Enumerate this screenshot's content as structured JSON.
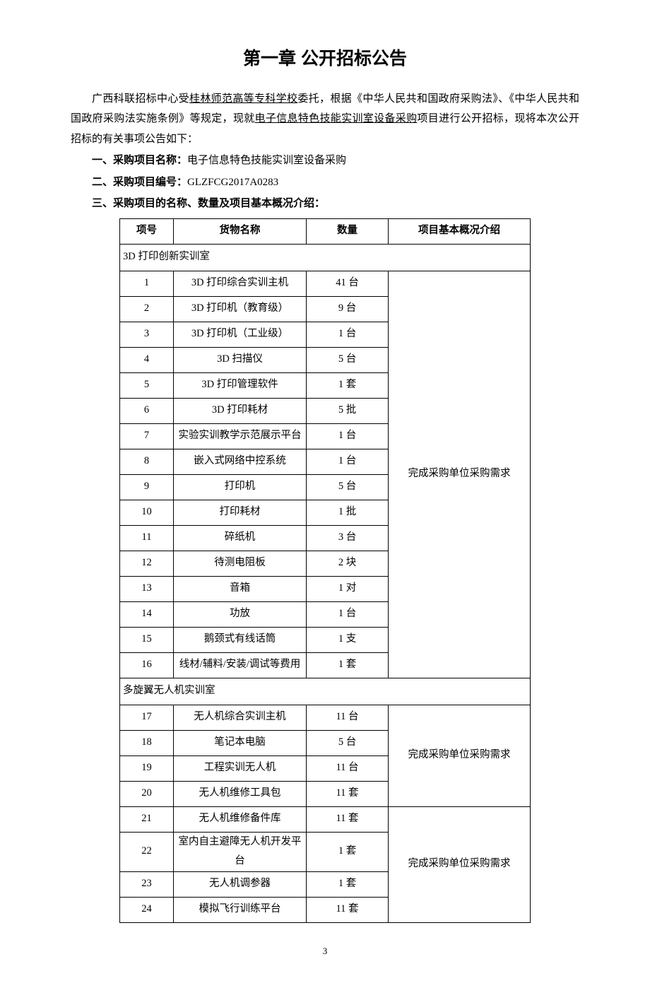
{
  "title": "第一章  公开招标公告",
  "intro_p1_a": "广西科联招标中心受",
  "intro_p1_u1": "桂林师范高等专科学校",
  "intro_p1_b": "委托，根据《中华人民共和国政府采购法》、《中华人民共和国政府采购法实施条例》等规定，现就",
  "intro_p1_u2": "电子信息特色技能实训室设备采购",
  "intro_p1_c": "项目进行公开招标，现将本次公开招标的有关事项公告如下：",
  "sec1_label": "一、采购项目名称：",
  "sec1_value": "电子信息特色技能实训室设备采购",
  "sec2_label": "二、采购项目编号：",
  "sec2_value": "GLZFCG2017A0283",
  "sec3_label": "三、采购项目的名称、数量及项目基本概况介绍：",
  "table": {
    "headers": {
      "no": "项号",
      "name": "货物名称",
      "qty": "数量",
      "desc": "项目基本概况介绍"
    },
    "group1_title": "3D 打印创新实训室",
    "group1_desc": "完成采购单位采购需求",
    "group1_rows": [
      {
        "no": "1",
        "name": "3D 打印综合实训主机",
        "qty": "41 台"
      },
      {
        "no": "2",
        "name": "3D 打印机（教育级）",
        "qty": "9 台"
      },
      {
        "no": "3",
        "name": "3D 打印机（工业级）",
        "qty": "1 台"
      },
      {
        "no": "4",
        "name": "3D 扫描仪",
        "qty": "5 台"
      },
      {
        "no": "5",
        "name": "3D 打印管理软件",
        "qty": "1 套"
      },
      {
        "no": "6",
        "name": "3D 打印耗材",
        "qty": "5 批"
      },
      {
        "no": "7",
        "name": "实验实训教学示范展示平台",
        "qty": "1 台"
      },
      {
        "no": "8",
        "name": "嵌入式网络中控系统",
        "qty": "1 台"
      },
      {
        "no": "9",
        "name": "打印机",
        "qty": "5 台"
      },
      {
        "no": "10",
        "name": "打印耗材",
        "qty": "1 批"
      },
      {
        "no": "11",
        "name": "碎纸机",
        "qty": "3 台"
      },
      {
        "no": "12",
        "name": "待测电阻板",
        "qty": "2 块"
      },
      {
        "no": "13",
        "name": "音箱",
        "qty": "1 对"
      },
      {
        "no": "14",
        "name": "功放",
        "qty": "1 台"
      },
      {
        "no": "15",
        "name": "鹅颈式有线话筒",
        "qty": "1 支"
      },
      {
        "no": "16",
        "name": "线材/辅料/安装/调试等费用",
        "qty": "1 套"
      }
    ],
    "group2_title": "多旋翼无人机实训室",
    "group2_desc1": "完成采购单位采购需求",
    "group2_desc2": "完成采购单位采购需求",
    "group2_rows1": [
      {
        "no": "17",
        "name": "无人机综合实训主机",
        "qty": "11 台"
      },
      {
        "no": "18",
        "name": "笔记本电脑",
        "qty": "5 台"
      },
      {
        "no": "19",
        "name": "工程实训无人机",
        "qty": "11 台"
      },
      {
        "no": "20",
        "name": "无人机维修工具包",
        "qty": "11 套"
      }
    ],
    "group2_rows2": [
      {
        "no": "21",
        "name": "无人机维修备件库",
        "qty": "11 套"
      },
      {
        "no": "22",
        "name": "室内自主避障无人机开发平台",
        "qty": "1 套"
      },
      {
        "no": "23",
        "name": "无人机调参器",
        "qty": "1 套"
      },
      {
        "no": "24",
        "name": "模拟飞行训练平台",
        "qty": "11 套"
      }
    ]
  },
  "page_number": "3"
}
